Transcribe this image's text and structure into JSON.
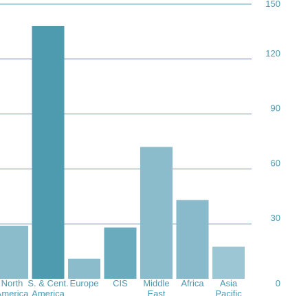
{
  "chart_data": {
    "type": "bar",
    "title": "",
    "xlabel": "",
    "ylabel": "",
    "ylim": [
      0,
      150
    ],
    "yticks": [
      0,
      30,
      60,
      90,
      120,
      150
    ],
    "grid": true,
    "y_axis_side": "right",
    "categories": [
      [
        "North",
        "America"
      ],
      [
        "S. & Cent.",
        "America"
      ],
      [
        "Europe"
      ],
      [
        "CIS"
      ],
      [
        "Middle",
        "East"
      ],
      [
        "Africa"
      ],
      [
        "Asia",
        "Pacific"
      ]
    ],
    "values": [
      29,
      138,
      11,
      28,
      72,
      43,
      17.5
    ],
    "bar_colors": [
      "#8bbccb",
      "#4e9bb0",
      "#8bbccb",
      "#6aabbd",
      "#8bbccb",
      "#88bacb",
      "#9cc6d4"
    ],
    "grid_color": "#5aa4b8",
    "text_color": "#4a9ab2"
  }
}
